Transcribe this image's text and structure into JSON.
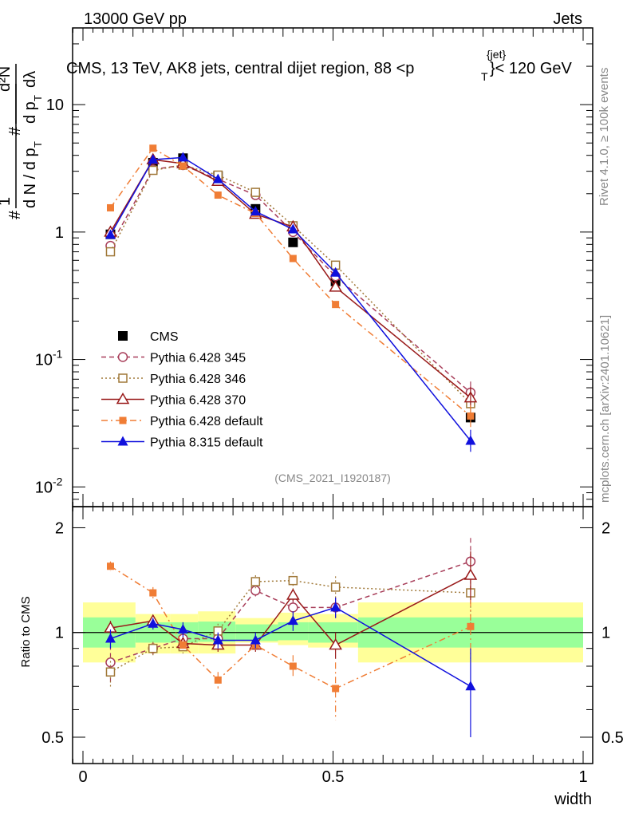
{
  "header": {
    "energy_label": "13000 GeV pp",
    "process_label": "Jets",
    "rivet_label": "Rivet 4.1.0, ≥ 100k events",
    "mcplots_label": "mcplots.cern.ch [arXiv:2401.10621]",
    "analysis_id": "(CMS_2021_I1920187)"
  },
  "chart_data": {
    "type": "scatter",
    "title": "CMS, 13 TeV, AK8 jets, central dijet region, 88 <p_T^{jet}< 120 GeV",
    "xlabel": "width",
    "ylabel_main": "1/(dN/dp_T) d²N/(dp_T dλ)",
    "ylabel_ratio": "Ratio to CMS",
    "xlim": [
      0,
      1
    ],
    "ylim_main": [
      0.007,
      40
    ],
    "ylim_ratio": [
      0.42,
      2.3
    ],
    "yscale": "log",
    "x": [
      0.055,
      0.14,
      0.2,
      0.27,
      0.345,
      0.42,
      0.505,
      0.775
    ],
    "x_ticks": [
      "0",
      "0.5",
      "1"
    ],
    "y_ticks_main": [
      "10^-2",
      "10^-1",
      "1",
      "10"
    ],
    "y_ticks_ratio": [
      "0.5",
      "1",
      "2"
    ],
    "band_edges": [
      0,
      0.105,
      0.175,
      0.23,
      0.305,
      0.39,
      0.45,
      0.55,
      1
    ],
    "band_inner_lo": [
      0.905,
      0.935,
      0.935,
      0.94,
      0.945,
      0.95,
      0.935,
      0.905
    ],
    "band_inner_hi": [
      1.105,
      1.07,
      1.07,
      1.075,
      1.055,
      1.07,
      1.07,
      1.105
    ],
    "band_outer_lo": [
      0.82,
      0.87,
      0.87,
      0.87,
      0.935,
      0.92,
      0.905,
      0.82
    ],
    "band_outer_hi": [
      1.22,
      1.13,
      1.13,
      1.15,
      1.1,
      1.14,
      1.13,
      1.22
    ],
    "series": [
      {
        "name": "CMS",
        "kind": "data",
        "color": "#000000",
        "values": [
          0.96,
          3.5,
          3.8,
          2.75,
          1.52,
          0.83,
          0.41,
          0.035
        ],
        "ratio": [
          1,
          1,
          1,
          1,
          1,
          1,
          1,
          1
        ]
      },
      {
        "name": "Pythia 6.428 345",
        "kind": "open-circle",
        "line": "dashed",
        "color": "#a83e5a",
        "values": [
          0.78,
          3.1,
          3.35,
          2.6,
          1.95,
          1.0,
          0.45,
          0.055
        ],
        "ratio": [
          0.82,
          0.9,
          0.96,
          0.96,
          1.32,
          1.18,
          1.18,
          1.6
        ],
        "ratio_err": [
          0.1,
          0.04,
          0.04,
          0.05,
          0.05,
          0.06,
          0.08,
          0.27
        ]
      },
      {
        "name": "Pythia 6.428 346",
        "kind": "open-square",
        "line": "dotted",
        "color": "#a07838",
        "values": [
          0.7,
          3.05,
          3.35,
          2.8,
          2.05,
          1.12,
          0.55,
          0.045
        ],
        "ratio": [
          0.77,
          0.9,
          0.91,
          1.01,
          1.4,
          1.41,
          1.35,
          1.3
        ],
        "ratio_err": [
          0.08,
          0.04,
          0.04,
          0.05,
          0.06,
          0.08,
          0.1,
          0.25
        ]
      },
      {
        "name": "Pythia 6.428 370",
        "kind": "open-triangle",
        "line": "solid",
        "color": "#991a1a",
        "values": [
          1.0,
          3.7,
          3.45,
          2.5,
          1.38,
          1.1,
          0.37,
          0.05
        ],
        "ratio": [
          1.03,
          1.08,
          0.93,
          0.92,
          0.92,
          1.28,
          0.92,
          1.46
        ],
        "ratio_err": [
          0.05,
          0.04,
          0.03,
          0.04,
          0.04,
          0.05,
          0.08,
          0.25
        ]
      },
      {
        "name": "Pythia 6.428 default",
        "kind": "filled-square",
        "line": "dash-dot",
        "color": "#f07d35",
        "values": [
          1.55,
          4.55,
          3.3,
          1.95,
          1.4,
          0.62,
          0.27,
          0.036
        ],
        "ratio": [
          1.55,
          1.3,
          0.92,
          0.73,
          0.92,
          0.8,
          0.69,
          1.04
        ],
        "ratio_err": [
          0.05,
          0.05,
          0.03,
          0.04,
          0.04,
          0.06,
          0.13,
          0.2
        ]
      },
      {
        "name": "Pythia 8.315 default",
        "kind": "filled-triangle",
        "line": "solid",
        "color": "#1010dd",
        "values": [
          0.95,
          3.7,
          3.85,
          2.6,
          1.45,
          1.05,
          0.48,
          0.023
        ],
        "ratio": [
          0.96,
          1.06,
          1.02,
          0.95,
          0.95,
          1.08,
          1.18,
          0.7
        ],
        "ratio_err": [
          0.06,
          0.04,
          0.05,
          0.05,
          0.05,
          0.07,
          0.08,
          0.2
        ]
      }
    ]
  }
}
